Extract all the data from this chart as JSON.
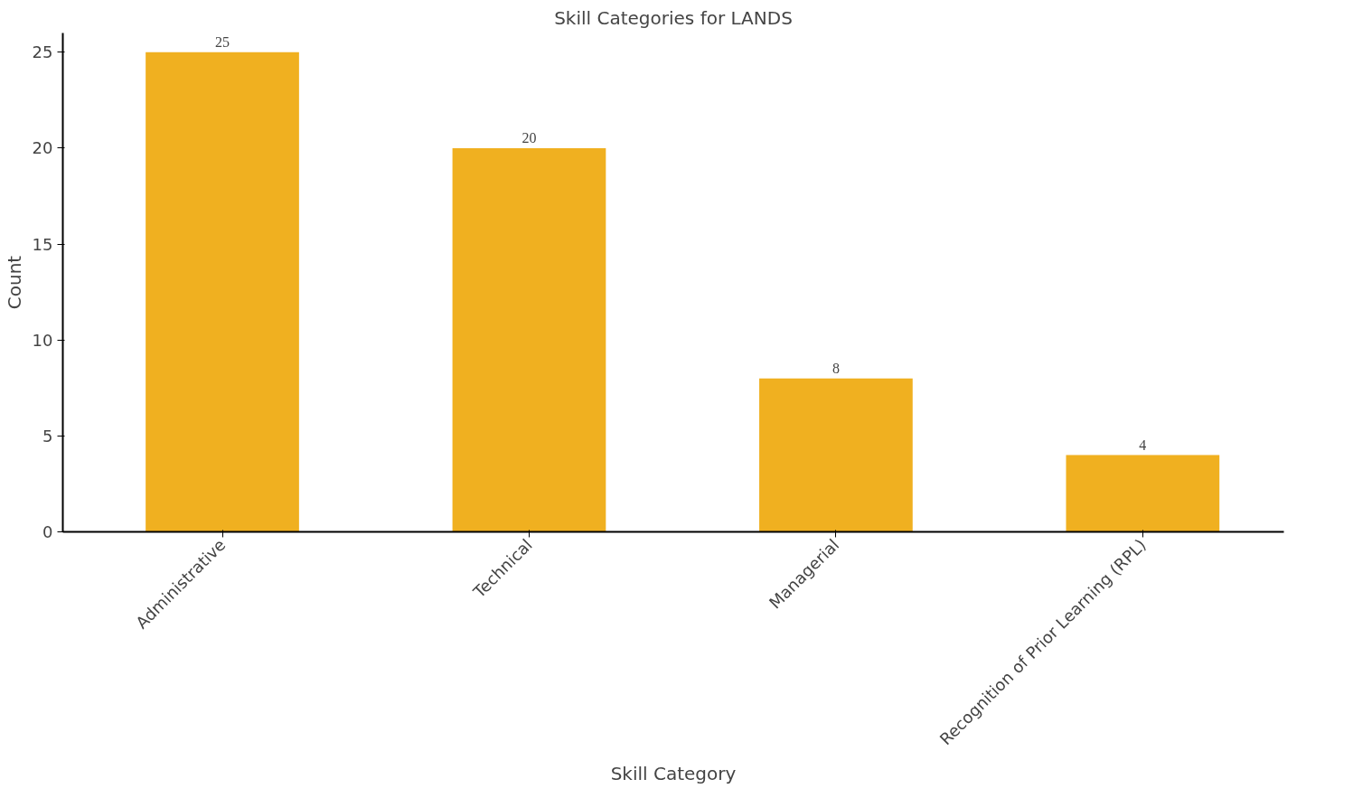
{
  "chart_data": {
    "type": "bar",
    "title": "Skill Categories for LANDS",
    "xlabel": "Skill Category",
    "ylabel": "Count",
    "categories": [
      "Administrative",
      "Technical",
      "Managerial",
      "Recognition of Prior Learning (RPL)"
    ],
    "values": [
      25,
      20,
      8,
      4
    ],
    "color": "#f0b020",
    "ylim": [
      0,
      26
    ],
    "yticks": [
      0,
      5,
      10,
      15,
      20,
      25
    ],
    "data_labels": true,
    "grid": false
  }
}
